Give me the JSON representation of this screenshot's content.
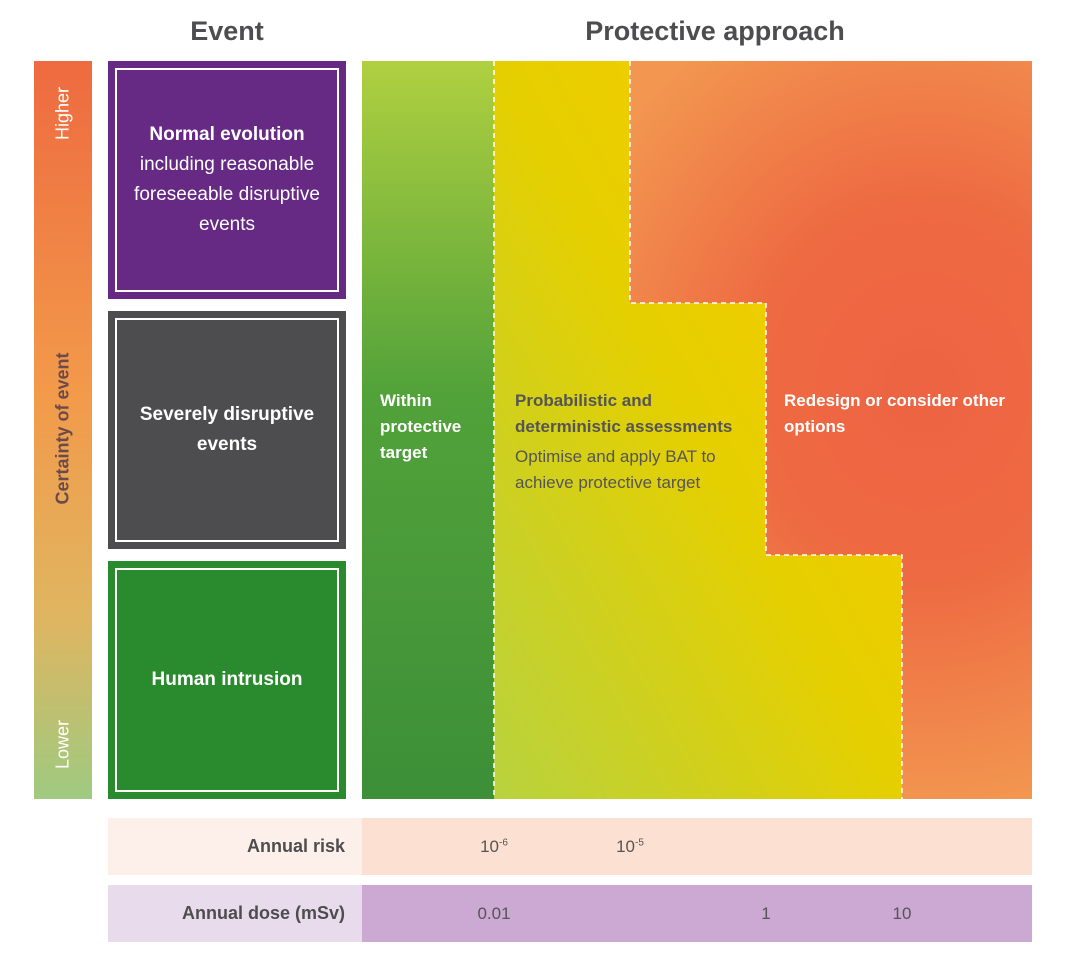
{
  "headers": {
    "event": "Event",
    "protective_approach": "Protective approach"
  },
  "certainty_axis": {
    "label": "Certainty of event",
    "top_label": "Higher",
    "bottom_label": "Lower"
  },
  "events": [
    {
      "title": "Normal evolution",
      "subtitle": "including reasonable foreseeable disruptive events",
      "color": "#662a84"
    },
    {
      "title": "Severely disruptive events",
      "subtitle": "",
      "color": "#4d4d4f"
    },
    {
      "title": "Human intrusion",
      "subtitle": "",
      "color": "#2a8a2e"
    }
  ],
  "zones": [
    {
      "title": "Within protective target",
      "subtitle": ""
    },
    {
      "title": "Probabilistic and deterministic assessments",
      "subtitle": "Optimise and apply BAT to achieve protective target"
    },
    {
      "title": "Redesign or consider other options",
      "subtitle": ""
    }
  ],
  "scales": {
    "annual_risk": {
      "label": "Annual risk",
      "ticks": [
        {
          "base": "10",
          "exp": "-6"
        },
        {
          "base": "10",
          "exp": "-5"
        }
      ],
      "color": "#fce0d2"
    },
    "annual_dose": {
      "label": "Annual dose (mSv)",
      "ticks": [
        "0.01",
        "1",
        "10"
      ],
      "color": "#cba9d3"
    }
  }
}
